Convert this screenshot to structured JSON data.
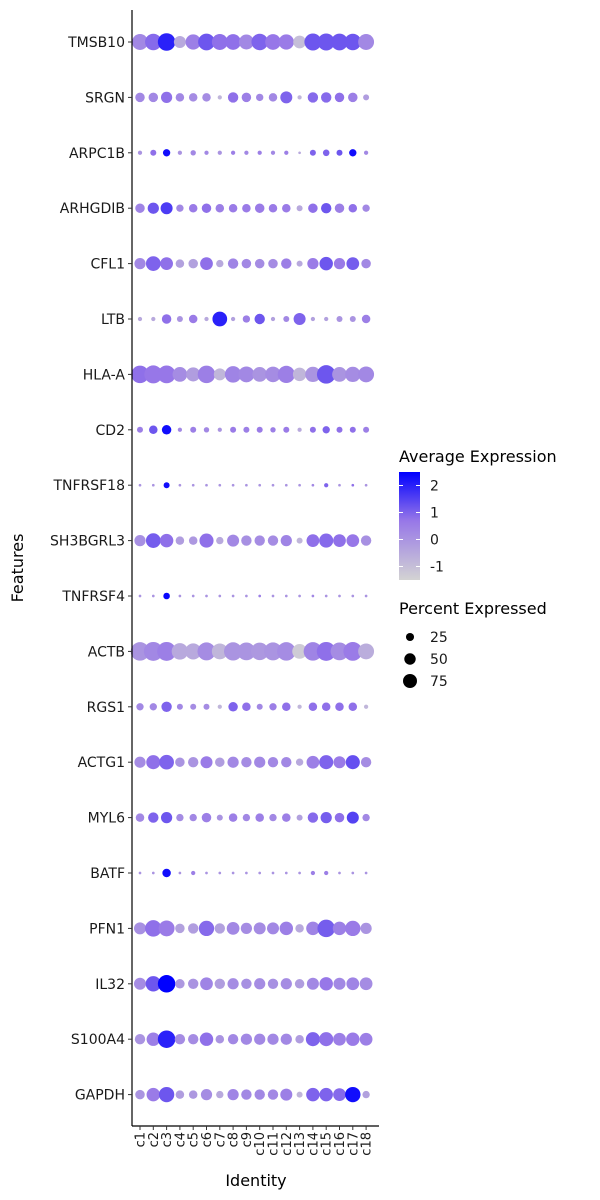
{
  "chart_data": {
    "type": "dotplot",
    "xlabel": "Identity",
    "ylabel": "Features",
    "clusters": [
      "c1",
      "c2",
      "c3",
      "c4",
      "c5",
      "c6",
      "c7",
      "c8",
      "c9",
      "c10",
      "c11",
      "c12",
      "c13",
      "c14",
      "c15",
      "c16",
      "c17",
      "c18"
    ],
    "genes": [
      "TMSB10",
      "SRGN",
      "ARPC1B",
      "ARHGDIB",
      "CFL1",
      "LTB",
      "HLA-A",
      "CD2",
      "TNFRSF18",
      "SH3BGRL3",
      "TNFRSF4",
      "ACTB",
      "RGS1",
      "ACTG1",
      "MYL6",
      "BATF",
      "PFN1",
      "IL32",
      "S100A4",
      "GAPDH"
    ],
    "pct": [
      [
        70,
        75,
        85,
        40,
        65,
        78,
        70,
        68,
        62,
        75,
        68,
        65,
        45,
        80,
        80,
        78,
        75,
        70
      ],
      [
        25,
        25,
        35,
        20,
        20,
        20,
        5,
        30,
        25,
        15,
        20,
        40,
        5,
        30,
        30,
        25,
        25,
        10
      ],
      [
        5,
        10,
        15,
        5,
        8,
        5,
        5,
        5,
        5,
        5,
        5,
        5,
        2,
        10,
        12,
        10,
        15,
        5
      ],
      [
        25,
        35,
        40,
        15,
        20,
        25,
        20,
        20,
        20,
        25,
        20,
        20,
        10,
        25,
        30,
        25,
        20,
        15
      ],
      [
        35,
        60,
        45,
        20,
        25,
        45,
        15,
        30,
        25,
        25,
        25,
        30,
        10,
        35,
        50,
        35,
        45,
        25
      ],
      [
        5,
        5,
        25,
        10,
        20,
        5,
        60,
        5,
        15,
        30,
        5,
        10,
        40,
        5,
        5,
        10,
        10,
        20
      ],
      [
        85,
        90,
        88,
        60,
        55,
        85,
        40,
        75,
        70,
        60,
        68,
        82,
        50,
        65,
        95,
        60,
        65,
        70
      ],
      [
        10,
        20,
        25,
        5,
        10,
        8,
        5,
        10,
        10,
        10,
        8,
        10,
        5,
        10,
        15,
        10,
        10,
        10
      ],
      [
        2,
        2,
        10,
        2,
        2,
        2,
        2,
        2,
        2,
        2,
        2,
        2,
        2,
        2,
        5,
        2,
        2,
        2
      ],
      [
        35,
        60,
        50,
        20,
        20,
        55,
        15,
        40,
        30,
        30,
        30,
        35,
        10,
        45,
        55,
        45,
        45,
        30
      ],
      [
        2,
        2,
        12,
        2,
        2,
        2,
        2,
        2,
        2,
        2,
        2,
        2,
        2,
        2,
        2,
        2,
        2,
        2
      ],
      [
        95,
        99,
        99,
        75,
        72,
        90,
        70,
        92,
        88,
        85,
        90,
        95,
        60,
        95,
        99,
        88,
        98,
        70
      ],
      [
        15,
        15,
        30,
        10,
        10,
        10,
        5,
        25,
        20,
        10,
        15,
        20,
        5,
        20,
        20,
        20,
        20,
        5
      ],
      [
        35,
        55,
        60,
        25,
        30,
        40,
        25,
        35,
        30,
        35,
        30,
        30,
        15,
        45,
        55,
        40,
        55,
        30
      ],
      [
        20,
        30,
        35,
        15,
        15,
        25,
        10,
        20,
        15,
        20,
        15,
        20,
        10,
        30,
        35,
        25,
        40,
        15
      ],
      [
        2,
        2,
        20,
        2,
        5,
        2,
        2,
        2,
        2,
        2,
        2,
        2,
        2,
        5,
        5,
        2,
        2,
        2
      ],
      [
        40,
        75,
        70,
        25,
        30,
        65,
        30,
        45,
        35,
        40,
        40,
        50,
        20,
        50,
        85,
        50,
        65,
        35
      ],
      [
        40,
        65,
        85,
        25,
        30,
        45,
        30,
        35,
        30,
        35,
        30,
        35,
        25,
        40,
        50,
        40,
        45,
        45
      ],
      [
        30,
        50,
        85,
        30,
        30,
        50,
        20,
        30,
        35,
        35,
        35,
        35,
        20,
        55,
        55,
        45,
        50,
        45
      ],
      [
        25,
        50,
        65,
        20,
        20,
        35,
        15,
        35,
        30,
        30,
        30,
        40,
        10,
        50,
        50,
        45,
        65,
        15
      ]
    ],
    "avg": [
      [
        0.3,
        0.9,
        2.0,
        -0.5,
        0.5,
        1.2,
        0.8,
        0.8,
        0.3,
        1.0,
        0.7,
        0.6,
        -1.0,
        1.2,
        1.2,
        1.2,
        1.2,
        0.3
      ],
      [
        0.3,
        0.3,
        0.8,
        0.3,
        0.2,
        0.2,
        -0.8,
        0.8,
        0.5,
        0.3,
        0.3,
        1.0,
        -0.8,
        0.9,
        0.9,
        0.8,
        0.5,
        -0.2
      ],
      [
        0.0,
        0.8,
        2.3,
        0.0,
        0.3,
        0.3,
        0.0,
        0.5,
        0.3,
        0.5,
        0.3,
        0.5,
        -0.5,
        1.0,
        1.0,
        1.2,
        2.3,
        0.3
      ],
      [
        0.4,
        1.2,
        1.6,
        0.3,
        0.6,
        0.8,
        0.5,
        0.6,
        0.6,
        0.6,
        0.6,
        0.6,
        -0.5,
        0.8,
        1.2,
        0.5,
        0.8,
        0.3
      ],
      [
        0.3,
        1.0,
        0.8,
        -0.3,
        -0.3,
        0.8,
        -0.5,
        0.4,
        0.3,
        0.2,
        0.2,
        0.5,
        -0.5,
        0.6,
        1.2,
        0.6,
        1.1,
        0.3
      ],
      [
        -0.5,
        -0.5,
        0.8,
        0.0,
        0.6,
        -0.5,
        2.0,
        -0.3,
        0.5,
        1.2,
        -0.3,
        0.3,
        1.0,
        -0.3,
        -0.3,
        0.0,
        0.0,
        0.5
      ],
      [
        0.8,
        0.7,
        0.7,
        0.2,
        -0.2,
        0.5,
        -0.8,
        0.4,
        0.3,
        0.0,
        0.2,
        0.5,
        -0.8,
        0.0,
        1.2,
        0.0,
        0.2,
        0.3
      ],
      [
        0.5,
        1.2,
        2.3,
        0.3,
        0.5,
        0.3,
        0.0,
        0.6,
        0.5,
        0.6,
        0.5,
        0.6,
        -0.5,
        0.8,
        1.0,
        0.8,
        0.8,
        0.5
      ],
      [
        0.0,
        0.0,
        2.3,
        0.0,
        0.0,
        0.0,
        0.0,
        0.0,
        0.0,
        0.0,
        0.0,
        0.0,
        0.0,
        0.3,
        1.0,
        0.0,
        0.8,
        0.0
      ],
      [
        0.1,
        1.1,
        0.8,
        -0.2,
        -0.1,
        0.8,
        -0.5,
        0.3,
        0.1,
        0.2,
        0.2,
        0.4,
        -0.8,
        0.8,
        0.9,
        0.8,
        0.7,
        0.1
      ],
      [
        0.0,
        0.0,
        2.4,
        0.0,
        0.0,
        0.0,
        0.0,
        0.0,
        0.0,
        0.5,
        0.0,
        0.0,
        0.0,
        0.3,
        0.0,
        0.0,
        0.0,
        0.0
      ],
      [
        0.0,
        0.3,
        0.5,
        -0.5,
        -0.5,
        0.2,
        -0.8,
        0.0,
        0.0,
        -0.1,
        0.0,
        0.2,
        -1.3,
        0.4,
        0.8,
        0.2,
        0.6,
        -0.6
      ],
      [
        0.3,
        0.3,
        1.0,
        0.3,
        0.2,
        0.2,
        -0.8,
        1.0,
        0.8,
        0.3,
        0.5,
        0.8,
        -0.8,
        0.8,
        0.8,
        0.8,
        0.8,
        -0.8
      ],
      [
        0.2,
        0.8,
        1.0,
        0.0,
        0.0,
        0.6,
        -0.2,
        0.3,
        0.2,
        0.3,
        0.3,
        0.3,
        -0.5,
        0.5,
        1.0,
        0.6,
        1.3,
        0.2
      ],
      [
        0.3,
        1.0,
        1.2,
        0.2,
        0.3,
        0.5,
        0.0,
        0.5,
        0.3,
        0.5,
        0.3,
        0.5,
        -0.3,
        0.9,
        1.1,
        0.8,
        1.5,
        0.3
      ],
      [
        0.0,
        0.0,
        2.3,
        0.0,
        0.5,
        0.0,
        0.0,
        0.0,
        0.0,
        0.0,
        0.0,
        0.0,
        0.0,
        0.5,
        0.5,
        0.0,
        0.0,
        0.0
      ],
      [
        0.1,
        0.8,
        0.6,
        -0.3,
        -0.2,
        0.9,
        -0.3,
        0.3,
        0.2,
        0.2,
        0.3,
        0.5,
        -0.5,
        0.4,
        1.1,
        0.5,
        0.6,
        0.0
      ],
      [
        0.2,
        1.2,
        2.5,
        -0.1,
        0.0,
        0.4,
        -0.2,
        0.2,
        0.1,
        0.2,
        0.1,
        0.2,
        -0.2,
        0.3,
        0.7,
        0.3,
        0.4,
        0.2
      ],
      [
        0.0,
        0.5,
        2.0,
        0.2,
        0.2,
        0.8,
        0.0,
        0.3,
        0.3,
        0.3,
        0.3,
        0.3,
        -0.2,
        1.0,
        0.8,
        0.5,
        0.6,
        0.5
      ],
      [
        0.0,
        0.6,
        1.2,
        -0.2,
        -0.1,
        0.2,
        -0.5,
        0.4,
        0.3,
        0.3,
        0.3,
        0.5,
        -0.8,
        1.0,
        1.0,
        0.9,
        2.3,
        -0.3
      ]
    ],
    "color_scale": {
      "low": "#d3d3d3",
      "mid": "#9777e8",
      "high": "#0000ff",
      "min": -1.5,
      "max": 2.5
    },
    "legend": {
      "color_title": "Average Expression",
      "color_ticks": [
        "2",
        "1",
        "0",
        "-1"
      ],
      "size_title": "Percent Expressed",
      "size_ticks": [
        "25",
        "50",
        "75"
      ],
      "placement": "right"
    }
  }
}
